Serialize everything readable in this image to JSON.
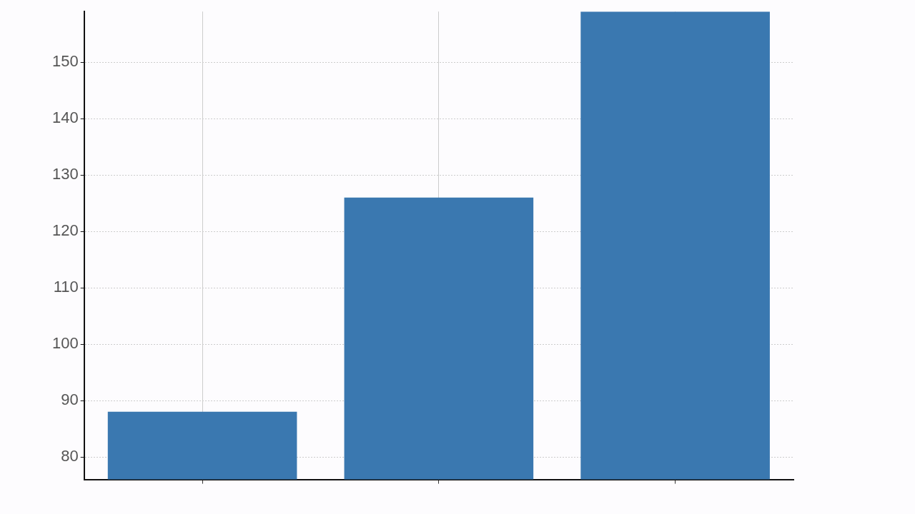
{
  "chart_data": {
    "type": "bar",
    "categories": [
      null,
      null,
      null
    ],
    "values": [
      88,
      126,
      159
    ],
    "color": "#3a78b0",
    "ylim": [
      76,
      159
    ],
    "yticks": [
      80,
      90,
      100,
      110,
      120,
      130,
      140,
      150
    ],
    "grid": true,
    "legend": false
  }
}
